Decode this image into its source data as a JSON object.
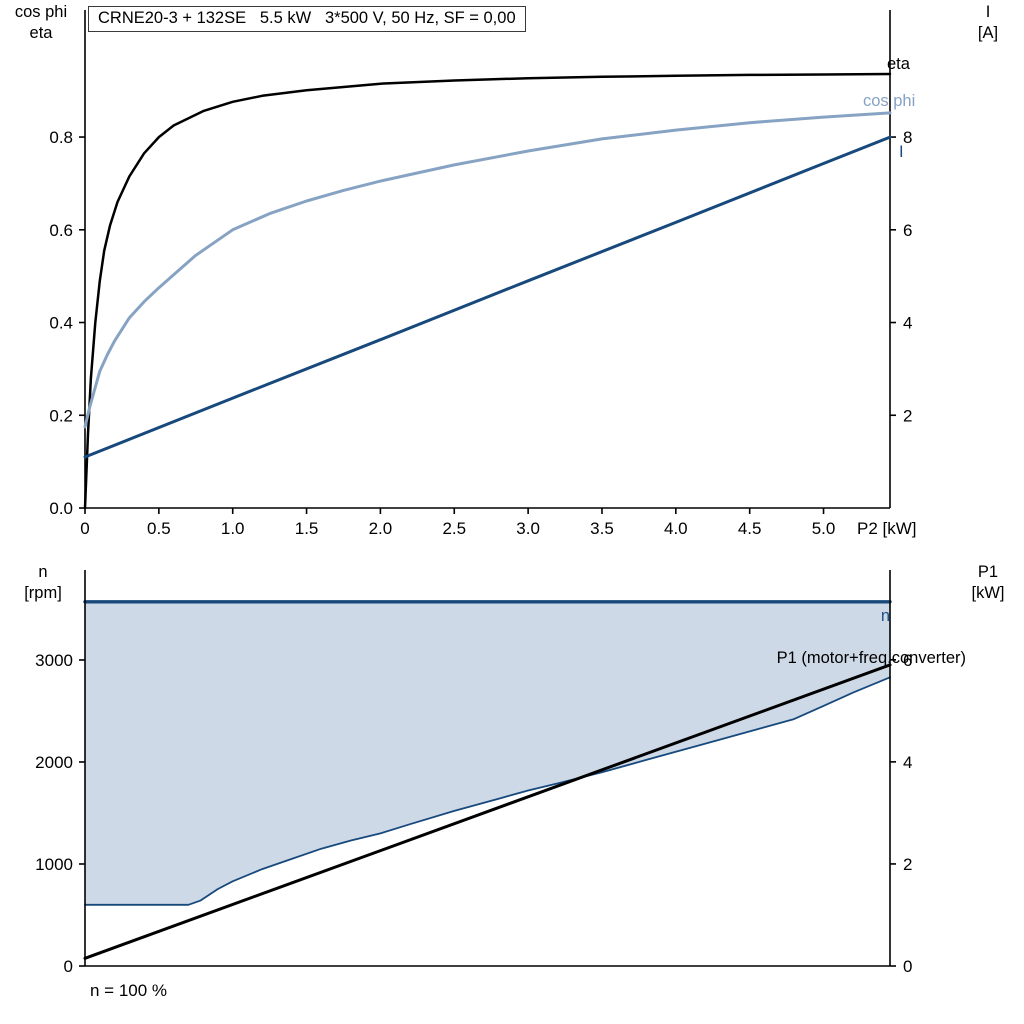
{
  "header": {
    "title": "CRNE20-3 + 132SE   5.5 kW   3*500 V, 50 Hz, SF = 0,00"
  },
  "top_chart": {
    "y_left_label_line1": "cos phi",
    "y_left_label_line2": "eta",
    "y_right_label_line1": "I",
    "y_right_label_line2": "[A]",
    "x_axis_label": "P2 [kW]",
    "curve_labels": {
      "eta": "eta",
      "cos_phi": "cos phi",
      "current": "I"
    }
  },
  "bottom_chart": {
    "y_left_label_line1": "n",
    "y_left_label_line2": "[rpm]",
    "y_right_label_line1": "P1",
    "y_right_label_line2": "[kW]",
    "curve_labels": {
      "n": "n",
      "p1": "P1 (motor+freq.converter)"
    },
    "footnote": "n = 100 %"
  },
  "colors": {
    "eta": "#000000",
    "cos_phi": "#87a3c3",
    "current": "#17497c",
    "n_line": "#17497c",
    "n_fill": "#cdd9e6",
    "p1": "#000000",
    "axis": "#000000"
  },
  "chart_data": [
    {
      "type": "line",
      "title": "CRNE20-3 + 132SE   5.5 kW   3*500 V, 50 Hz, SF = 0,00",
      "xlabel": "P2 [kW]",
      "ylabel_left": "cos phi / eta",
      "ylabel_right": "I [A]",
      "xlim": [
        0,
        5.45
      ],
      "ylim_left": [
        0,
        1.074
      ],
      "ylim_right": [
        0,
        10.74
      ],
      "grid": false,
      "xtick_labels": [
        "0",
        "0.5",
        "1.0",
        "1.5",
        "2.0",
        "2.5",
        "3.0",
        "3.5",
        "4.0",
        "4.5",
        "5.0"
      ],
      "ytick_left_labels": [
        "0.0",
        "0.2",
        "0.4",
        "0.6",
        "0.8"
      ],
      "ytick_right_labels": [
        "2",
        "4",
        "6",
        "8"
      ],
      "series": [
        {
          "name": "eta",
          "axis": "left",
          "color": "#000000",
          "width": 2.5,
          "points": [
            [
              0,
              0
            ],
            [
              0.02,
              0.16
            ],
            [
              0.04,
              0.28
            ],
            [
              0.07,
              0.4
            ],
            [
              0.1,
              0.49
            ],
            [
              0.13,
              0.555
            ],
            [
              0.17,
              0.61
            ],
            [
              0.22,
              0.66
            ],
            [
              0.3,
              0.715
            ],
            [
              0.4,
              0.765
            ],
            [
              0.5,
              0.8
            ],
            [
              0.6,
              0.825
            ],
            [
              0.8,
              0.856
            ],
            [
              1.0,
              0.876
            ],
            [
              1.2,
              0.889
            ],
            [
              1.5,
              0.901
            ],
            [
              2.0,
              0.915
            ],
            [
              2.5,
              0.922
            ],
            [
              3.0,
              0.927
            ],
            [
              3.5,
              0.93
            ],
            [
              4.0,
              0.932
            ],
            [
              4.5,
              0.934
            ],
            [
              5.0,
              0.935
            ],
            [
              5.45,
              0.936
            ]
          ]
        },
        {
          "name": "cos phi",
          "axis": "left",
          "color": "#87a3c3",
          "width": 3,
          "points": [
            [
              0,
              0.175
            ],
            [
              0.03,
              0.215
            ],
            [
              0.06,
              0.25
            ],
            [
              0.1,
              0.295
            ],
            [
              0.15,
              0.33
            ],
            [
              0.2,
              0.36
            ],
            [
              0.3,
              0.41
            ],
            [
              0.4,
              0.445
            ],
            [
              0.5,
              0.475
            ],
            [
              0.75,
              0.545
            ],
            [
              1.0,
              0.6
            ],
            [
              1.25,
              0.635
            ],
            [
              1.5,
              0.662
            ],
            [
              1.75,
              0.685
            ],
            [
              2.0,
              0.705
            ],
            [
              2.5,
              0.74
            ],
            [
              3.0,
              0.77
            ],
            [
              3.5,
              0.796
            ],
            [
              4.0,
              0.815
            ],
            [
              4.5,
              0.831
            ],
            [
              5.0,
              0.843
            ],
            [
              5.45,
              0.852
            ]
          ]
        },
        {
          "name": "I",
          "axis": "right",
          "color": "#17497c",
          "width": 3,
          "points": [
            [
              0,
              1.1
            ],
            [
              1.0,
              2.37
            ],
            [
              2.0,
              3.63
            ],
            [
              3.0,
              4.9
            ],
            [
              4.0,
              6.16
            ],
            [
              5.0,
              7.43
            ],
            [
              5.45,
              8.0
            ]
          ]
        }
      ]
    },
    {
      "type": "line",
      "title": "",
      "xlabel": "",
      "ylabel_left": "n [rpm]",
      "ylabel_right": "P1 [kW]",
      "xlim": [
        0,
        5.45
      ],
      "ylim_left": [
        0,
        3882
      ],
      "ylim_right": [
        0,
        7.76
      ],
      "grid": false,
      "xtick_labels": [],
      "ytick_left_labels": [
        "0",
        "1000",
        "2000",
        "3000"
      ],
      "ytick_right_labels": [
        "0",
        "2",
        "4",
        "6"
      ],
      "annotation": "n = 100 %",
      "series": [
        {
          "name": "n",
          "kind": "area",
          "axis": "left",
          "color": "#17497c",
          "fill": "#cdd9e6",
          "top": 3570,
          "points": [
            [
              0,
              600
            ],
            [
              0.7,
              600
            ],
            [
              0.78,
              640
            ],
            [
              0.9,
              755
            ],
            [
              1.0,
              830
            ],
            [
              1.2,
              950
            ],
            [
              1.4,
              1050
            ],
            [
              1.6,
              1150
            ],
            [
              1.8,
              1230
            ],
            [
              2.0,
              1300
            ],
            [
              2.2,
              1390
            ],
            [
              2.5,
              1520
            ],
            [
              2.8,
              1640
            ],
            [
              3.0,
              1720
            ],
            [
              3.2,
              1790
            ],
            [
              3.5,
              1900
            ],
            [
              3.8,
              2020
            ],
            [
              4.0,
              2100
            ],
            [
              4.2,
              2180
            ],
            [
              4.5,
              2300
            ],
            [
              4.8,
              2420
            ],
            [
              5.0,
              2550
            ],
            [
              5.2,
              2680
            ],
            [
              5.45,
              2830
            ]
          ]
        },
        {
          "name": "P1 (motor+freq.converter)",
          "axis": "right",
          "color": "#000000",
          "width": 3,
          "points": [
            [
              0,
              0.15
            ],
            [
              5.45,
              5.9
            ]
          ]
        }
      ]
    }
  ]
}
